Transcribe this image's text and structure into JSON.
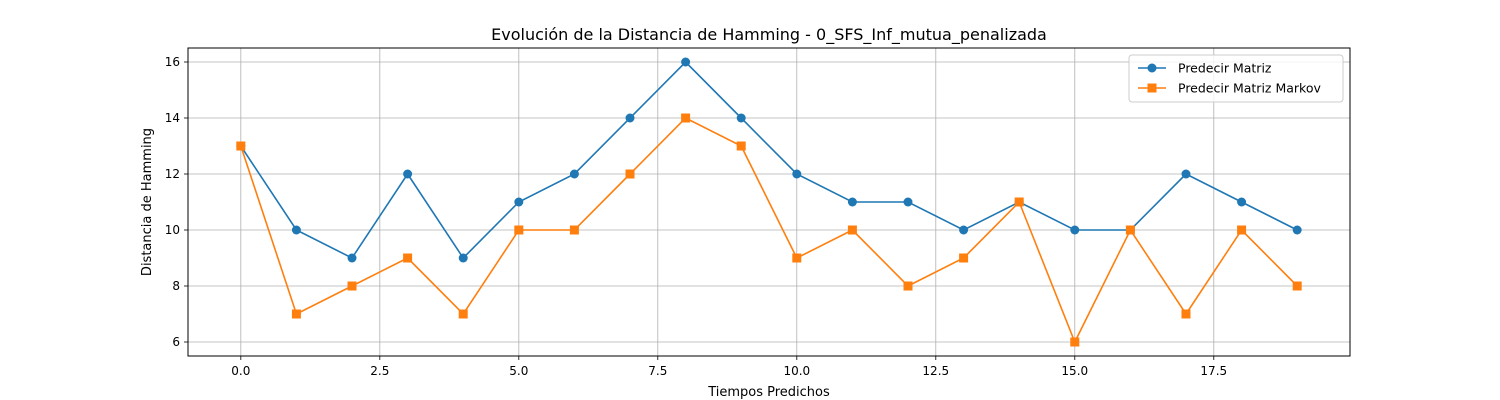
{
  "chart_data": {
    "type": "line",
    "title": "Evolución de la Distancia de Hamming - 0_SFS_Inf_mutua_penalizada",
    "xlabel": "Tiempos Predichos",
    "ylabel": "Distancia de Hamming",
    "x": [
      0,
      1,
      2,
      3,
      4,
      5,
      6,
      7,
      8,
      9,
      10,
      11,
      12,
      13,
      14,
      15,
      16,
      17,
      18,
      19
    ],
    "xlim": [
      -0.95,
      19.95
    ],
    "ylim": [
      5.5,
      16.5
    ],
    "xticks": [
      0.0,
      2.5,
      5.0,
      7.5,
      10.0,
      12.5,
      15.0,
      17.5
    ],
    "xtick_labels": [
      "0.0",
      "2.5",
      "5.0",
      "7.5",
      "10.0",
      "12.5",
      "15.0",
      "17.5"
    ],
    "yticks": [
      6,
      8,
      10,
      12,
      14,
      16
    ],
    "ytick_labels": [
      "6",
      "8",
      "10",
      "12",
      "14",
      "16"
    ],
    "grid": true,
    "legend_position": "top-right",
    "series": [
      {
        "name": "Predecir Matriz",
        "color": "#1f77b4",
        "marker": "circle",
        "values": [
          13,
          10,
          9,
          12,
          9,
          11,
          12,
          14,
          16,
          14,
          12,
          11,
          11,
          10,
          11,
          10,
          10,
          12,
          11,
          10
        ]
      },
      {
        "name": "Predecir Matriz Markov",
        "color": "#ff7f0e",
        "marker": "square",
        "values": [
          13,
          7,
          8,
          9,
          7,
          10,
          10,
          12,
          14,
          13,
          9,
          10,
          8,
          9,
          11,
          6,
          10,
          7,
          10,
          8
        ]
      }
    ]
  }
}
